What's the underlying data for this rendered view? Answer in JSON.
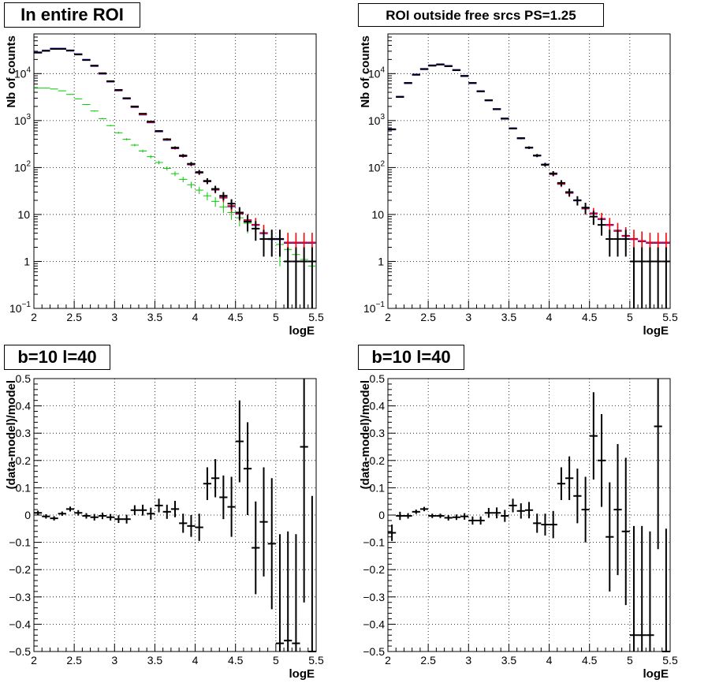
{
  "colors": {
    "data": "#000000",
    "model": "#ff0000",
    "model_outline": "#0000ff",
    "component": "#00cc00",
    "grid": "#000000"
  },
  "chart_data": [
    {
      "type": "scatter",
      "title": "In entire ROI",
      "xlabel": "logE",
      "ylabel": "Nb of counts",
      "xlim": [
        2,
        5.5
      ],
      "ylim": [
        0.1,
        70000
      ],
      "yscale": "log",
      "grid": true,
      "x_ticks": [
        2,
        2.5,
        3,
        3.5,
        4,
        4.5,
        5,
        5.5
      ],
      "x_tick_labels": [
        "2",
        "2.5",
        "3",
        "3.5",
        "4",
        "4.5",
        "5",
        "5.5"
      ],
      "y_ticks": [
        0.1,
        1,
        10,
        100,
        1000,
        10000
      ],
      "y_tick_labels": [
        "10^-1",
        "1",
        "10",
        "10^2",
        "10^3",
        "10^4"
      ],
      "x": [
        2.05,
        2.15,
        2.25,
        2.35,
        2.45,
        2.55,
        2.65,
        2.75,
        2.85,
        2.95,
        3.05,
        3.15,
        3.25,
        3.35,
        3.45,
        3.55,
        3.65,
        3.75,
        3.85,
        3.95,
        4.05,
        4.15,
        4.25,
        4.35,
        4.45,
        4.55,
        4.65,
        4.75,
        4.85,
        4.95,
        5.05,
        5.15,
        5.25,
        5.35,
        5.45
      ],
      "series": [
        {
          "values": [
            28000,
            30500,
            33500,
            33500,
            31000,
            25500,
            19500,
            14800,
            10200,
            6900,
            4500,
            3000,
            2000,
            1400,
            950,
            600,
            400,
            265,
            180,
            120,
            80,
            52,
            35,
            25,
            17,
            11,
            7,
            5,
            3,
            3,
            3,
            1,
            1,
            1,
            1
          ],
          "role": "data",
          "color": "#000000"
        },
        {
          "values": [
            28200,
            30800,
            33800,
            33800,
            31000,
            25800,
            19600,
            14600,
            10000,
            6800,
            4400,
            2950,
            1950,
            1350,
            920,
            590,
            390,
            258,
            176,
            117,
            78,
            51,
            34,
            23,
            15,
            10.5,
            7.5,
            6,
            4,
            3,
            3,
            2.5,
            2.5,
            2.5,
            2.5
          ],
          "role": "model",
          "color": "#ff0000"
        },
        {
          "values": [
            4900,
            4900,
            4700,
            4300,
            3600,
            2900,
            2200,
            1600,
            1100,
            780,
            550,
            400,
            300,
            225,
            170,
            128,
            96,
            74,
            56,
            43,
            33,
            25,
            19,
            14.5,
            11,
            8.5,
            6.5,
            5,
            4,
            3,
            2.3,
            1.8,
            1.4,
            1.1,
            0.8
          ],
          "role": "component",
          "color": "#00cc00"
        }
      ]
    },
    {
      "type": "scatter",
      "title": "ROI outside free srcs PS=1.25",
      "xlabel": "logE",
      "ylabel": "Nb of counts",
      "xlim": [
        2,
        5.5
      ],
      "ylim": [
        0.1,
        70000
      ],
      "yscale": "log",
      "grid": true,
      "x_ticks": [
        2,
        2.5,
        3,
        3.5,
        4,
        4.5,
        5,
        5.5
      ],
      "x_tick_labels": [
        "2",
        "2.5",
        "3",
        "3.5",
        "4",
        "4.5",
        "5",
        "5.5"
      ],
      "y_ticks": [
        0.1,
        1,
        10,
        100,
        1000,
        10000
      ],
      "y_tick_labels": [
        "10^-1",
        "1",
        "10",
        "10^2",
        "10^3",
        "10^4"
      ],
      "x": [
        2.05,
        2.15,
        2.25,
        2.35,
        2.45,
        2.55,
        2.65,
        2.75,
        2.85,
        2.95,
        3.05,
        3.15,
        3.25,
        3.35,
        3.45,
        3.55,
        3.65,
        3.75,
        3.85,
        3.95,
        4.05,
        4.15,
        4.25,
        4.35,
        4.45,
        4.55,
        4.65,
        4.75,
        4.85,
        4.95,
        5.05,
        5.15,
        5.25,
        5.35,
        5.45
      ],
      "series": [
        {
          "values": [
            650,
            3200,
            6300,
            9500,
            12500,
            14800,
            15600,
            14400,
            11800,
            8900,
            6300,
            4200,
            2700,
            1750,
            1100,
            680,
            420,
            265,
            180,
            115,
            75,
            47,
            30,
            20,
            14,
            9,
            6,
            3,
            3,
            3,
            1,
            1,
            1,
            1,
            1
          ],
          "role": "data",
          "color": "#000000"
        },
        {
          "values": [
            650,
            3200,
            6300,
            9500,
            12500,
            14900,
            15700,
            14500,
            11900,
            8900,
            6300,
            4200,
            2700,
            1750,
            1100,
            680,
            420,
            265,
            180,
            115,
            73,
            45,
            29,
            20,
            13.5,
            10.5,
            8,
            6,
            4.5,
            3.5,
            3,
            2.7,
            2.5,
            2.5,
            2.5
          ],
          "role": "model",
          "color": "#ff0000"
        }
      ]
    },
    {
      "type": "scatter",
      "title": "b=10 l=40",
      "xlabel": "logE",
      "ylabel": "(data-model)/model",
      "xlim": [
        2,
        5.5
      ],
      "ylim": [
        -0.5,
        0.5
      ],
      "grid": true,
      "x_ticks": [
        2,
        2.5,
        3,
        3.5,
        4,
        4.5,
        5,
        5.5
      ],
      "x_tick_labels": [
        "2",
        "2.5",
        "3",
        "3.5",
        "4",
        "4.5",
        "5",
        "5.5"
      ],
      "y_ticks": [
        -0.5,
        -0.4,
        -0.3,
        -0.2,
        -0.1,
        0,
        0.1,
        0.2,
        0.3,
        0.4,
        0.5
      ],
      "y_tick_labels": [
        "−0.5",
        "−0.4",
        "−0.3",
        "−0.2",
        "−0.1",
        "0",
        "0.1",
        "0.2",
        "0.3",
        "0.4",
        "0.5"
      ],
      "x": [
        2.05,
        2.15,
        2.25,
        2.35,
        2.45,
        2.55,
        2.65,
        2.75,
        2.85,
        2.95,
        3.05,
        3.15,
        3.25,
        3.35,
        3.45,
        3.55,
        3.65,
        3.75,
        3.85,
        3.95,
        4.05,
        4.15,
        4.25,
        4.35,
        4.45,
        4.55,
        4.65,
        4.75,
        4.85,
        4.95,
        5.05,
        5.15,
        5.25,
        5.35,
        5.45
      ],
      "values": [
        0.008,
        -0.005,
        -0.012,
        0.005,
        0.022,
        0.008,
        -0.003,
        -0.008,
        -0.003,
        -0.008,
        -0.015,
        -0.015,
        0.018,
        0.018,
        0.005,
        0.035,
        0.012,
        0.022,
        -0.03,
        -0.04,
        -0.045,
        0.115,
        0.135,
        0.065,
        0.03,
        0.27,
        0.17,
        -0.12,
        -0.025,
        -0.105,
        -0.47,
        -0.46,
        -0.47,
        0.25,
        -0.5
      ],
      "errors": [
        0.008,
        0.008,
        0.008,
        0.008,
        0.009,
        0.01,
        0.01,
        0.012,
        0.012,
        0.012,
        0.014,
        0.016,
        0.018,
        0.02,
        0.022,
        0.025,
        0.026,
        0.03,
        0.035,
        0.04,
        0.05,
        0.06,
        0.07,
        0.08,
        0.11,
        0.15,
        0.17,
        0.17,
        0.2,
        0.24,
        0.4,
        0.4,
        0.4,
        0.57,
        0.57
      ],
      "series_color": "#000000"
    },
    {
      "type": "scatter",
      "title": "b=10 l=40",
      "xlabel": "logE",
      "ylabel": "(data-model)/model",
      "xlim": [
        2,
        5.5
      ],
      "ylim": [
        -0.5,
        0.5
      ],
      "grid": true,
      "x_ticks": [
        2,
        2.5,
        3,
        3.5,
        4,
        4.5,
        5,
        5.5
      ],
      "x_tick_labels": [
        "2",
        "2.5",
        "3",
        "3.5",
        "4",
        "4.5",
        "5",
        "5.5"
      ],
      "y_ticks": [
        -0.5,
        -0.4,
        -0.3,
        -0.2,
        -0.1,
        0,
        0.1,
        0.2,
        0.3,
        0.4,
        0.5
      ],
      "y_tick_labels": [
        "−0.5",
        "−0.4",
        "−0.3",
        "−0.2",
        "−0.1",
        "0",
        "0.1",
        "0.2",
        "0.3",
        "0.4",
        "0.5"
      ],
      "x": [
        2.05,
        2.15,
        2.25,
        2.35,
        2.45,
        2.55,
        2.65,
        2.75,
        2.85,
        2.95,
        3.05,
        3.15,
        3.25,
        3.35,
        3.45,
        3.55,
        3.65,
        3.75,
        3.85,
        3.95,
        4.05,
        4.15,
        4.25,
        4.35,
        4.45,
        4.55,
        4.65,
        4.75,
        4.85,
        4.95,
        5.05,
        5.15,
        5.25,
        5.35,
        5.45
      ],
      "values": [
        -0.065,
        -0.003,
        -0.003,
        0.012,
        0.022,
        -0.003,
        -0.003,
        -0.01,
        -0.008,
        -0.005,
        -0.02,
        -0.02,
        0.008,
        0.008,
        -0.003,
        0.035,
        0.015,
        0.018,
        -0.03,
        -0.035,
        -0.035,
        0.115,
        0.135,
        0.07,
        0.02,
        0.29,
        0.2,
        -0.08,
        0.02,
        -0.06,
        -0.44,
        -0.44,
        -0.44,
        0.325,
        -0.5
      ],
      "errors": [
        0.03,
        0.015,
        0.01,
        0.008,
        0.008,
        0.008,
        0.008,
        0.01,
        0.01,
        0.012,
        0.015,
        0.015,
        0.018,
        0.02,
        0.022,
        0.025,
        0.028,
        0.03,
        0.035,
        0.04,
        0.05,
        0.06,
        0.08,
        0.1,
        0.12,
        0.16,
        0.17,
        0.2,
        0.24,
        0.27,
        0.4,
        0.4,
        0.38,
        0.45,
        0.45
      ],
      "series_color": "#000000"
    }
  ]
}
